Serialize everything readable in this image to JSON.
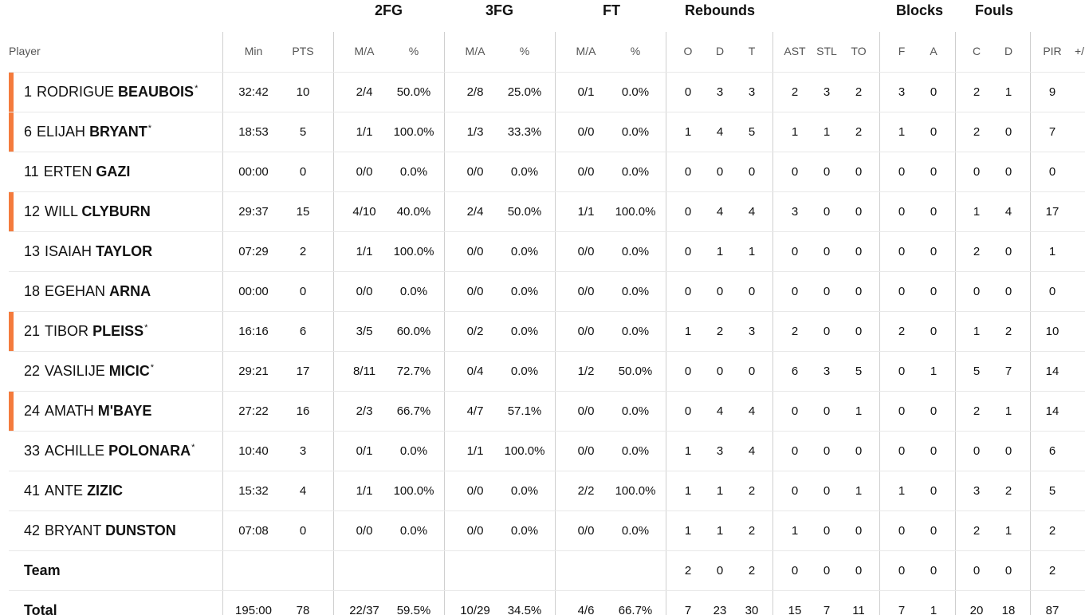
{
  "group_headers": {
    "fg2": "2FG",
    "fg3": "3FG",
    "ft": "FT",
    "rebounds": "Rebounds",
    "blocks": "Blocks",
    "fouls": "Fouls"
  },
  "columns": {
    "player": "Player",
    "min": "Min",
    "pts": "PTS",
    "fg2_ma": "M/A",
    "fg2_pct": "%",
    "fg3_ma": "M/A",
    "fg3_pct": "%",
    "ft_ma": "M/A",
    "ft_pct": "%",
    "reb_o": "O",
    "reb_d": "D",
    "reb_t": "T",
    "ast": "AST",
    "stl": "STL",
    "to": "TO",
    "blk_f": "F",
    "blk_a": "A",
    "foul_c": "C",
    "foul_d": "D",
    "pir": "PIR",
    "pm": "+/"
  },
  "players": [
    {
      "num": "1",
      "first": "RODRIGUE",
      "last": "BEAUBOIS",
      "star": "*",
      "bar": true,
      "min": "32:42",
      "pts": "10",
      "fg2_ma": "2/4",
      "fg2_pct": "50.0%",
      "fg3_ma": "2/8",
      "fg3_pct": "25.0%",
      "ft_ma": "0/1",
      "ft_pct": "0.0%",
      "reb_o": "0",
      "reb_d": "3",
      "reb_t": "3",
      "ast": "2",
      "stl": "3",
      "to": "2",
      "blk_f": "3",
      "blk_a": "0",
      "foul_c": "2",
      "foul_d": "1",
      "pir": "9"
    },
    {
      "num": "6",
      "first": "ELIJAH",
      "last": "BRYANT",
      "star": "*",
      "bar": true,
      "min": "18:53",
      "pts": "5",
      "fg2_ma": "1/1",
      "fg2_pct": "100.0%",
      "fg3_ma": "1/3",
      "fg3_pct": "33.3%",
      "ft_ma": "0/0",
      "ft_pct": "0.0%",
      "reb_o": "1",
      "reb_d": "4",
      "reb_t": "5",
      "ast": "1",
      "stl": "1",
      "to": "2",
      "blk_f": "1",
      "blk_a": "0",
      "foul_c": "2",
      "foul_d": "0",
      "pir": "7"
    },
    {
      "num": "11",
      "first": "ERTEN",
      "last": "GAZI",
      "star": "",
      "bar": false,
      "min": "00:00",
      "pts": "0",
      "fg2_ma": "0/0",
      "fg2_pct": "0.0%",
      "fg3_ma": "0/0",
      "fg3_pct": "0.0%",
      "ft_ma": "0/0",
      "ft_pct": "0.0%",
      "reb_o": "0",
      "reb_d": "0",
      "reb_t": "0",
      "ast": "0",
      "stl": "0",
      "to": "0",
      "blk_f": "0",
      "blk_a": "0",
      "foul_c": "0",
      "foul_d": "0",
      "pir": "0"
    },
    {
      "num": "12",
      "first": "WILL",
      "last": "CLYBURN",
      "star": "",
      "bar": true,
      "min": "29:37",
      "pts": "15",
      "fg2_ma": "4/10",
      "fg2_pct": "40.0%",
      "fg3_ma": "2/4",
      "fg3_pct": "50.0%",
      "ft_ma": "1/1",
      "ft_pct": "100.0%",
      "reb_o": "0",
      "reb_d": "4",
      "reb_t": "4",
      "ast": "3",
      "stl": "0",
      "to": "0",
      "blk_f": "0",
      "blk_a": "0",
      "foul_c": "1",
      "foul_d": "4",
      "pir": "17"
    },
    {
      "num": "13",
      "first": "ISAIAH",
      "last": "TAYLOR",
      "star": "",
      "bar": false,
      "min": "07:29",
      "pts": "2",
      "fg2_ma": "1/1",
      "fg2_pct": "100.0%",
      "fg3_ma": "0/0",
      "fg3_pct": "0.0%",
      "ft_ma": "0/0",
      "ft_pct": "0.0%",
      "reb_o": "0",
      "reb_d": "1",
      "reb_t": "1",
      "ast": "0",
      "stl": "0",
      "to": "0",
      "blk_f": "0",
      "blk_a": "0",
      "foul_c": "2",
      "foul_d": "0",
      "pir": "1"
    },
    {
      "num": "18",
      "first": "EGEHAN",
      "last": "ARNA",
      "star": "",
      "bar": false,
      "min": "00:00",
      "pts": "0",
      "fg2_ma": "0/0",
      "fg2_pct": "0.0%",
      "fg3_ma": "0/0",
      "fg3_pct": "0.0%",
      "ft_ma": "0/0",
      "ft_pct": "0.0%",
      "reb_o": "0",
      "reb_d": "0",
      "reb_t": "0",
      "ast": "0",
      "stl": "0",
      "to": "0",
      "blk_f": "0",
      "blk_a": "0",
      "foul_c": "0",
      "foul_d": "0",
      "pir": "0"
    },
    {
      "num": "21",
      "first": "TIBOR",
      "last": "PLEISS",
      "star": "*",
      "bar": true,
      "min": "16:16",
      "pts": "6",
      "fg2_ma": "3/5",
      "fg2_pct": "60.0%",
      "fg3_ma": "0/2",
      "fg3_pct": "0.0%",
      "ft_ma": "0/0",
      "ft_pct": "0.0%",
      "reb_o": "1",
      "reb_d": "2",
      "reb_t": "3",
      "ast": "2",
      "stl": "0",
      "to": "0",
      "blk_f": "2",
      "blk_a": "0",
      "foul_c": "1",
      "foul_d": "2",
      "pir": "10"
    },
    {
      "num": "22",
      "first": "VASILIJE",
      "last": "MICIC",
      "star": "*",
      "bar": false,
      "min": "29:21",
      "pts": "17",
      "fg2_ma": "8/11",
      "fg2_pct": "72.7%",
      "fg3_ma": "0/4",
      "fg3_pct": "0.0%",
      "ft_ma": "1/2",
      "ft_pct": "50.0%",
      "reb_o": "0",
      "reb_d": "0",
      "reb_t": "0",
      "ast": "6",
      "stl": "3",
      "to": "5",
      "blk_f": "0",
      "blk_a": "1",
      "foul_c": "5",
      "foul_d": "7",
      "pir": "14"
    },
    {
      "num": "24",
      "first": "AMATH",
      "last": "M'BAYE",
      "star": "",
      "bar": true,
      "min": "27:22",
      "pts": "16",
      "fg2_ma": "2/3",
      "fg2_pct": "66.7%",
      "fg3_ma": "4/7",
      "fg3_pct": "57.1%",
      "ft_ma": "0/0",
      "ft_pct": "0.0%",
      "reb_o": "0",
      "reb_d": "4",
      "reb_t": "4",
      "ast": "0",
      "stl": "0",
      "to": "1",
      "blk_f": "0",
      "blk_a": "0",
      "foul_c": "2",
      "foul_d": "1",
      "pir": "14"
    },
    {
      "num": "33",
      "first": "ACHILLE",
      "last": "POLONARA",
      "star": "*",
      "bar": false,
      "min": "10:40",
      "pts": "3",
      "fg2_ma": "0/1",
      "fg2_pct": "0.0%",
      "fg3_ma": "1/1",
      "fg3_pct": "100.0%",
      "ft_ma": "0/0",
      "ft_pct": "0.0%",
      "reb_o": "1",
      "reb_d": "3",
      "reb_t": "4",
      "ast": "0",
      "stl": "0",
      "to": "0",
      "blk_f": "0",
      "blk_a": "0",
      "foul_c": "0",
      "foul_d": "0",
      "pir": "6"
    },
    {
      "num": "41",
      "first": "ANTE",
      "last": "ZIZIC",
      "star": "",
      "bar": false,
      "min": "15:32",
      "pts": "4",
      "fg2_ma": "1/1",
      "fg2_pct": "100.0%",
      "fg3_ma": "0/0",
      "fg3_pct": "0.0%",
      "ft_ma": "2/2",
      "ft_pct": "100.0%",
      "reb_o": "1",
      "reb_d": "1",
      "reb_t": "2",
      "ast": "0",
      "stl": "0",
      "to": "1",
      "blk_f": "1",
      "blk_a": "0",
      "foul_c": "3",
      "foul_d": "2",
      "pir": "5"
    },
    {
      "num": "42",
      "first": "BRYANT",
      "last": "DUNSTON",
      "star": "",
      "bar": false,
      "min": "07:08",
      "pts": "0",
      "fg2_ma": "0/0",
      "fg2_pct": "0.0%",
      "fg3_ma": "0/0",
      "fg3_pct": "0.0%",
      "ft_ma": "0/0",
      "ft_pct": "0.0%",
      "reb_o": "1",
      "reb_d": "1",
      "reb_t": "2",
      "ast": "1",
      "stl": "0",
      "to": "0",
      "blk_f": "0",
      "blk_a": "0",
      "foul_c": "2",
      "foul_d": "1",
      "pir": "2"
    }
  ],
  "team": {
    "label": "Team",
    "reb_o": "2",
    "reb_d": "0",
    "reb_t": "2",
    "ast": "0",
    "stl": "0",
    "to": "0",
    "blk_f": "0",
    "blk_a": "0",
    "foul_c": "0",
    "foul_d": "0",
    "pir": "2"
  },
  "total": {
    "label": "Total",
    "min": "195:00",
    "pts": "78",
    "fg2_ma": "22/37",
    "fg2_pct": "59.5%",
    "fg3_ma": "10/29",
    "fg3_pct": "34.5%",
    "ft_ma": "4/6",
    "ft_pct": "66.7%",
    "reb_o": "7",
    "reb_d": "23",
    "reb_t": "30",
    "ast": "15",
    "stl": "7",
    "to": "11",
    "blk_f": "7",
    "blk_a": "1",
    "foul_c": "20",
    "foul_d": "18",
    "pir": "87"
  },
  "colors": {
    "starter_bar": "#f47b3d",
    "header_text": "#555555",
    "divider": "#cfcfcf"
  }
}
